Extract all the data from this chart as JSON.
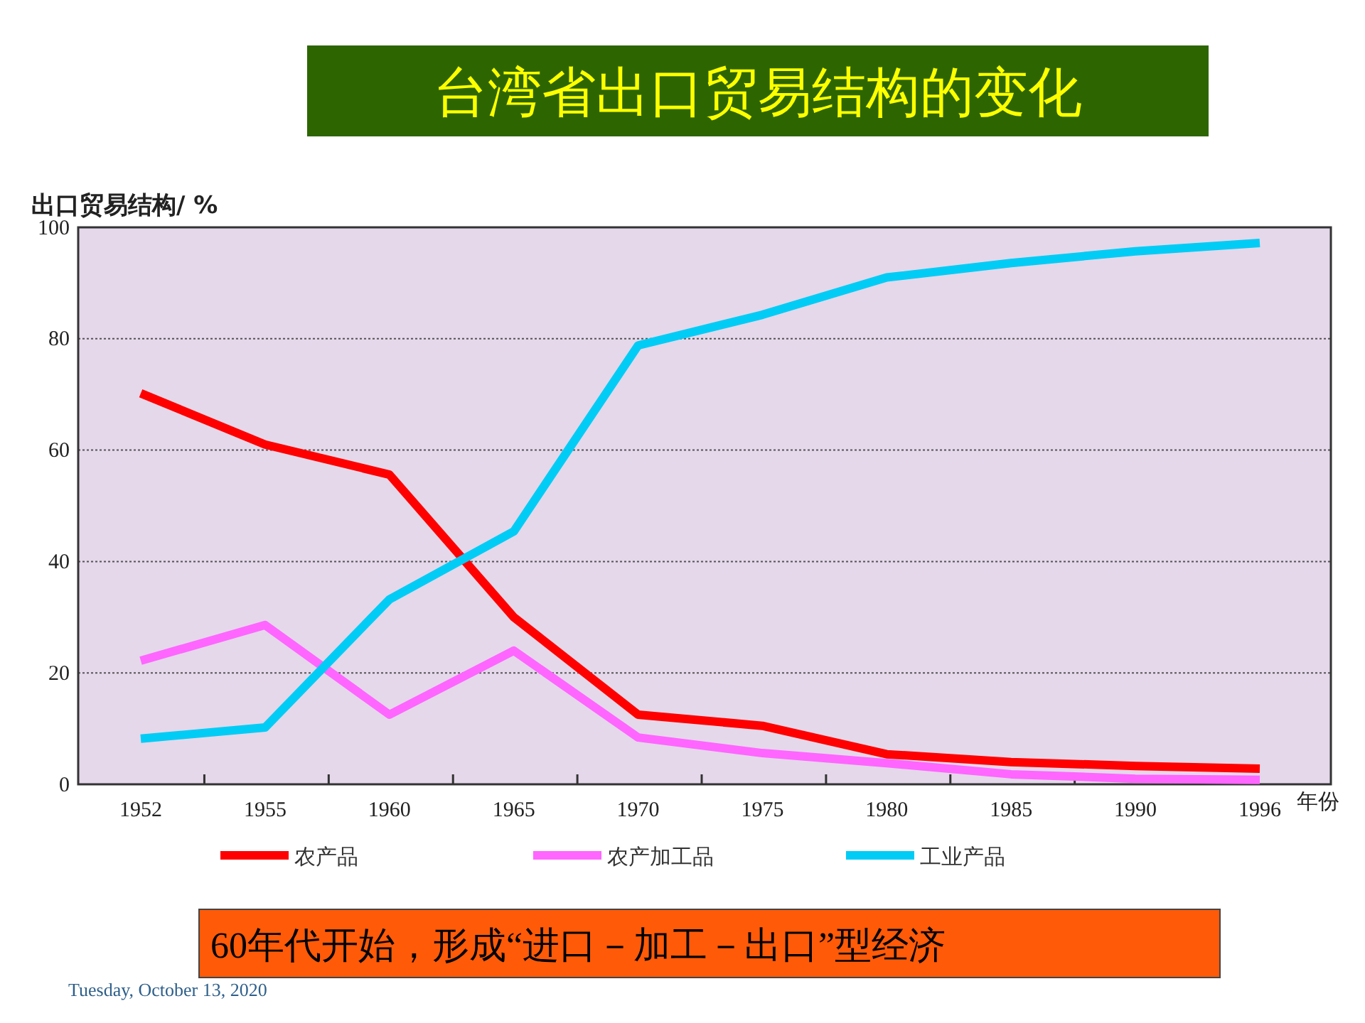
{
  "chart_data": {
    "type": "line",
    "title": "台湾省出口贸易结构的变化",
    "ylabel": "出口贸易结构/ %",
    "xlabel": "年份",
    "categories": [
      "1952",
      "1955",
      "1960",
      "1965",
      "1970",
      "1975",
      "1980",
      "1985",
      "1990",
      "1996"
    ],
    "series": [
      {
        "name": "农产品",
        "color": "#ff0000",
        "values": [
          70.2,
          61,
          55.6,
          30,
          12.5,
          10.5,
          5.4,
          4,
          3.3,
          2.8
        ]
      },
      {
        "name": "农产加工品",
        "color": "#ff66ff",
        "values": [
          22.2,
          28.6,
          12.5,
          24,
          8.4,
          5.6,
          3.8,
          1.8,
          1,
          0.8
        ]
      },
      {
        "name": "工业产品",
        "color": "#00ccf5",
        "values": [
          8.2,
          10.2,
          33.2,
          45.4,
          78.8,
          84.3,
          91,
          93.6,
          95.7,
          97.2
        ]
      }
    ],
    "ylim": [
      0,
      100
    ],
    "yticks": [
      0,
      20,
      40,
      60,
      80,
      100
    ],
    "grid": "y",
    "legend": "bottom",
    "line_style": "solid",
    "annotations": [
      "60年代开始，形成“进口－加工－出口”型经济",
      "Tuesday, October 13, 2020"
    ]
  }
}
